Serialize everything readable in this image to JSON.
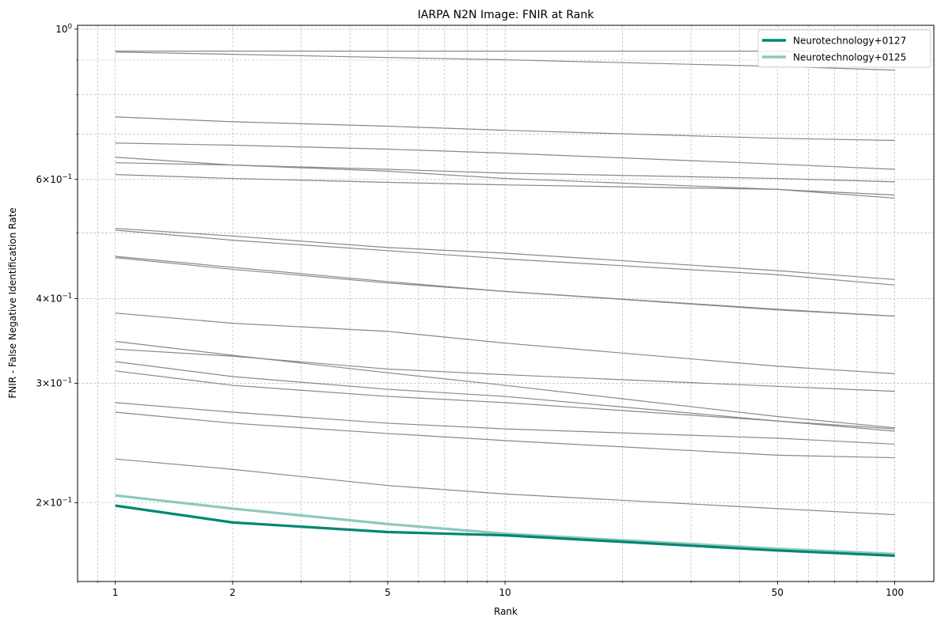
{
  "chart_data": {
    "type": "line",
    "title": "IARPA N2N Image: FNIR at Rank",
    "xlabel": "Rank",
    "ylabel": "FNIR - False Negative Identification Rate",
    "xscale": "log",
    "yscale": "log",
    "xlim": [
      0.8,
      126
    ],
    "ylim": [
      0.153,
      1.013
    ],
    "grid": true,
    "legend_placement": "top-right",
    "x": [
      1,
      2,
      5,
      10,
      50,
      100
    ],
    "xticks": [
      1,
      2,
      5,
      10,
      50,
      100
    ],
    "xtick_labels": [
      "1",
      "2",
      "5",
      "10",
      "50",
      "100"
    ],
    "yticks": [
      {
        "value": 1.0,
        "base": "10",
        "exp": "0",
        "mant": ""
      },
      {
        "value": 0.6,
        "base": "10",
        "exp": "−1",
        "mant": "6"
      },
      {
        "value": 0.4,
        "base": "10",
        "exp": "−1",
        "mant": "4"
      },
      {
        "value": 0.3,
        "base": "10",
        "exp": "−1",
        "mant": "3"
      },
      {
        "value": 0.2,
        "base": "10",
        "exp": "−1",
        "mant": "2"
      }
    ],
    "background_series_color": "#888888",
    "background_series": [
      [
        0.928,
        0.928,
        0.928,
        0.928,
        0.928,
        0.928
      ],
      [
        0.925,
        0.918,
        0.908,
        0.901,
        0.881,
        0.87
      ],
      [
        0.742,
        0.73,
        0.719,
        0.709,
        0.69,
        0.685
      ],
      [
        0.679,
        0.674,
        0.665,
        0.656,
        0.632,
        0.621
      ],
      [
        0.647,
        0.63,
        0.617,
        0.602,
        0.58,
        0.563
      ],
      [
        0.635,
        0.63,
        0.621,
        0.613,
        0.602,
        0.595
      ],
      [
        0.61,
        0.602,
        0.594,
        0.589,
        0.58,
        0.569
      ],
      [
        0.508,
        0.495,
        0.476,
        0.467,
        0.44,
        0.427
      ],
      [
        0.505,
        0.488,
        0.471,
        0.458,
        0.434,
        0.419
      ],
      [
        0.462,
        0.445,
        0.424,
        0.41,
        0.385,
        0.377
      ],
      [
        0.46,
        0.442,
        0.422,
        0.41,
        0.386,
        0.377
      ],
      [
        0.381,
        0.368,
        0.358,
        0.344,
        0.318,
        0.31
      ],
      [
        0.346,
        0.33,
        0.311,
        0.298,
        0.268,
        0.258
      ],
      [
        0.337,
        0.329,
        0.315,
        0.309,
        0.297,
        0.292
      ],
      [
        0.323,
        0.307,
        0.294,
        0.287,
        0.264,
        0.257
      ],
      [
        0.313,
        0.298,
        0.287,
        0.281,
        0.264,
        0.255
      ],
      [
        0.281,
        0.272,
        0.262,
        0.257,
        0.249,
        0.244
      ],
      [
        0.272,
        0.262,
        0.253,
        0.247,
        0.235,
        0.233
      ],
      [
        0.232,
        0.224,
        0.212,
        0.206,
        0.196,
        0.192
      ]
    ],
    "series": [
      {
        "name": "Neurotechnology+0125",
        "color": "#8ec9bd",
        "values": [
          0.205,
          0.196,
          0.186,
          0.18,
          0.171,
          0.168
        ]
      },
      {
        "name": "Neurotechnology+0127",
        "color": "#00876f",
        "values": [
          0.198,
          0.187,
          0.181,
          0.179,
          0.17,
          0.167
        ]
      }
    ],
    "legend_order": [
      1,
      0
    ]
  }
}
